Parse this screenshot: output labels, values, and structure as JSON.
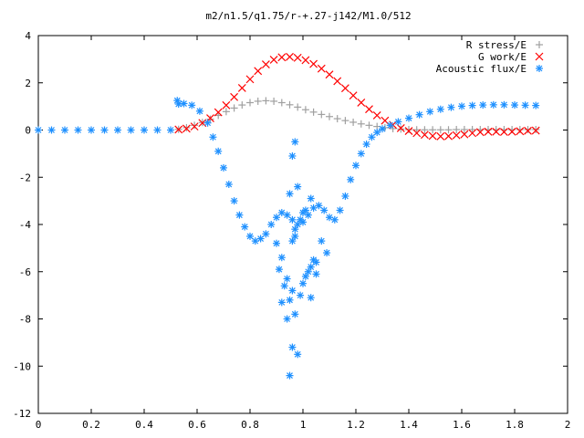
{
  "chart_data": {
    "type": "scatter",
    "title": "m2/n1.5/q1.75/r-+.27-j142/M1.0/512",
    "xlabel": "",
    "ylabel": "",
    "xlim": [
      0,
      2
    ],
    "ylim": [
      -12,
      4
    ],
    "x_ticks": [
      0,
      0.2,
      0.4,
      0.6,
      0.8,
      1,
      1.2,
      1.4,
      1.6,
      1.8,
      2
    ],
    "x_tick_labels": [
      "0",
      "0.2",
      "0.4",
      "0.6",
      "0.8",
      "1",
      "1.2",
      "1.4",
      "1.6",
      "1.8",
      "2"
    ],
    "y_ticks": [
      4,
      2,
      0,
      -2,
      -4,
      -6,
      -8,
      -10,
      -12
    ],
    "y_tick_labels": [
      "4",
      "2",
      "0",
      "-2",
      "-4",
      "-6",
      "-8",
      "-10",
      "-12"
    ],
    "grid": false,
    "legend_position": "top-right",
    "series": [
      {
        "name": "R stress/E",
        "marker": "+",
        "color": "#a0a0a0",
        "x": [
          0.53,
          0.56,
          0.59,
          0.62,
          0.65,
          0.68,
          0.71,
          0.74,
          0.77,
          0.8,
          0.83,
          0.86,
          0.89,
          0.92,
          0.95,
          0.98,
          1.01,
          1.04,
          1.07,
          1.1,
          1.13,
          1.16,
          1.19,
          1.22,
          1.25,
          1.28,
          1.31,
          1.34,
          1.37,
          1.4,
          1.43,
          1.46,
          1.49,
          1.52,
          1.55,
          1.58,
          1.61,
          1.64,
          1.67,
          1.7,
          1.73,
          1.76,
          1.79,
          1.82,
          1.85,
          1.88
        ],
        "y": [
          0.03,
          0.1,
          0.2,
          0.32,
          0.46,
          0.62,
          0.78,
          0.93,
          1.06,
          1.16,
          1.22,
          1.24,
          1.22,
          1.16,
          1.07,
          0.97,
          0.86,
          0.76,
          0.66,
          0.57,
          0.48,
          0.4,
          0.33,
          0.26,
          0.2,
          0.15,
          0.1,
          0.06,
          0.04,
          0.02,
          0.01,
          0.01,
          0.01,
          0.01,
          0.01,
          0.02,
          0.02,
          0.02,
          0.02,
          0.02,
          0.02,
          0.02,
          0.02,
          0.02,
          0.02,
          0.02
        ]
      },
      {
        "name": "G work/E",
        "marker": "x",
        "color": "#ff0000",
        "x": [
          0.53,
          0.56,
          0.59,
          0.62,
          0.65,
          0.68,
          0.71,
          0.74,
          0.77,
          0.8,
          0.83,
          0.86,
          0.89,
          0.92,
          0.95,
          0.98,
          1.01,
          1.04,
          1.07,
          1.1,
          1.13,
          1.16,
          1.19,
          1.22,
          1.25,
          1.28,
          1.31,
          1.34,
          1.37,
          1.4,
          1.43,
          1.46,
          1.49,
          1.52,
          1.55,
          1.58,
          1.61,
          1.64,
          1.67,
          1.7,
          1.73,
          1.76,
          1.79,
          1.82,
          1.85,
          1.88
        ],
        "y": [
          0.02,
          0.06,
          0.15,
          0.3,
          0.5,
          0.75,
          1.05,
          1.4,
          1.78,
          2.15,
          2.5,
          2.78,
          2.98,
          3.08,
          3.1,
          3.06,
          2.96,
          2.8,
          2.6,
          2.35,
          2.07,
          1.77,
          1.46,
          1.16,
          0.88,
          0.62,
          0.4,
          0.22,
          0.08,
          -0.04,
          -0.13,
          -0.2,
          -0.25,
          -0.27,
          -0.26,
          -0.22,
          -0.18,
          -0.13,
          -0.09,
          -0.07,
          -0.07,
          -0.08,
          -0.07,
          -0.05,
          -0.03,
          -0.02
        ]
      },
      {
        "name": "Acoustic flux/E",
        "marker": "*",
        "color": "#1e90ff",
        "x": [
          0,
          0.05,
          0.1,
          0.15,
          0.2,
          0.25,
          0.3,
          0.35,
          0.4,
          0.45,
          0.5,
          0.525,
          0.53,
          0.55,
          0.58,
          0.61,
          0.64,
          0.66,
          0.68,
          0.7,
          0.72,
          0.74,
          0.76,
          0.78,
          0.8,
          0.82,
          0.84,
          0.86,
          0.88,
          0.9,
          0.92,
          0.94,
          0.96,
          0.98,
          1.0,
          1.02,
          1.04,
          1.06,
          1.08,
          1.1,
          1.12,
          1.14,
          1.16,
          1.18,
          1.2,
          1.22,
          1.24,
          1.26,
          1.28,
          1.3,
          1.33,
          1.36,
          1.4,
          1.44,
          1.48,
          1.52,
          1.56,
          1.6,
          1.64,
          1.68,
          1.72,
          1.76,
          1.8,
          1.84,
          1.88,
          0.9,
          0.92,
          0.94,
          0.96,
          0.91,
          0.93,
          0.95,
          0.97,
          0.99,
          1.01,
          1.03,
          1.05,
          0.92,
          0.94,
          0.96,
          0.98,
          1.0,
          1.02,
          1.04,
          0.95,
          0.97,
          0.99,
          1.01,
          1.03,
          0.96,
          0.97,
          0.95,
          0.98,
          1.0,
          0.96,
          0.97,
          1.07,
          1.09,
          1.05,
          1.03
        ],
        "y": [
          0,
          0,
          0,
          0,
          0,
          0,
          0,
          0,
          0,
          0,
          0,
          1.25,
          1.1,
          1.12,
          1.05,
          0.8,
          0.3,
          -0.3,
          -0.9,
          -1.6,
          -2.3,
          -3.0,
          -3.6,
          -4.1,
          -4.5,
          -4.7,
          -4.6,
          -4.4,
          -4.0,
          -3.7,
          -3.5,
          -3.6,
          -3.8,
          -4.0,
          -3.9,
          -3.6,
          -3.3,
          -3.2,
          -3.4,
          -3.7,
          -3.8,
          -3.4,
          -2.8,
          -2.1,
          -1.5,
          -1.0,
          -0.6,
          -0.3,
          -0.1,
          0.05,
          0.2,
          0.35,
          0.5,
          0.65,
          0.78,
          0.88,
          0.96,
          1.01,
          1.04,
          1.06,
          1.07,
          1.07,
          1.06,
          1.05,
          1.04,
          -4.8,
          -5.4,
          -6.3,
          -6.8,
          -5.9,
          -6.6,
          -7.2,
          -7.8,
          -7.0,
          -6.2,
          -5.8,
          -5.6,
          -7.3,
          -8.0,
          -9.2,
          -9.5,
          -6.5,
          -6.0,
          -5.5,
          -10.4,
          -4.5,
          -3.8,
          -3.4,
          -2.9,
          -1.1,
          -0.5,
          -2.7,
          -2.4,
          -3.5,
          -4.7,
          -4.2,
          -4.7,
          -5.2,
          -6.1,
          -7.1
        ]
      }
    ]
  }
}
